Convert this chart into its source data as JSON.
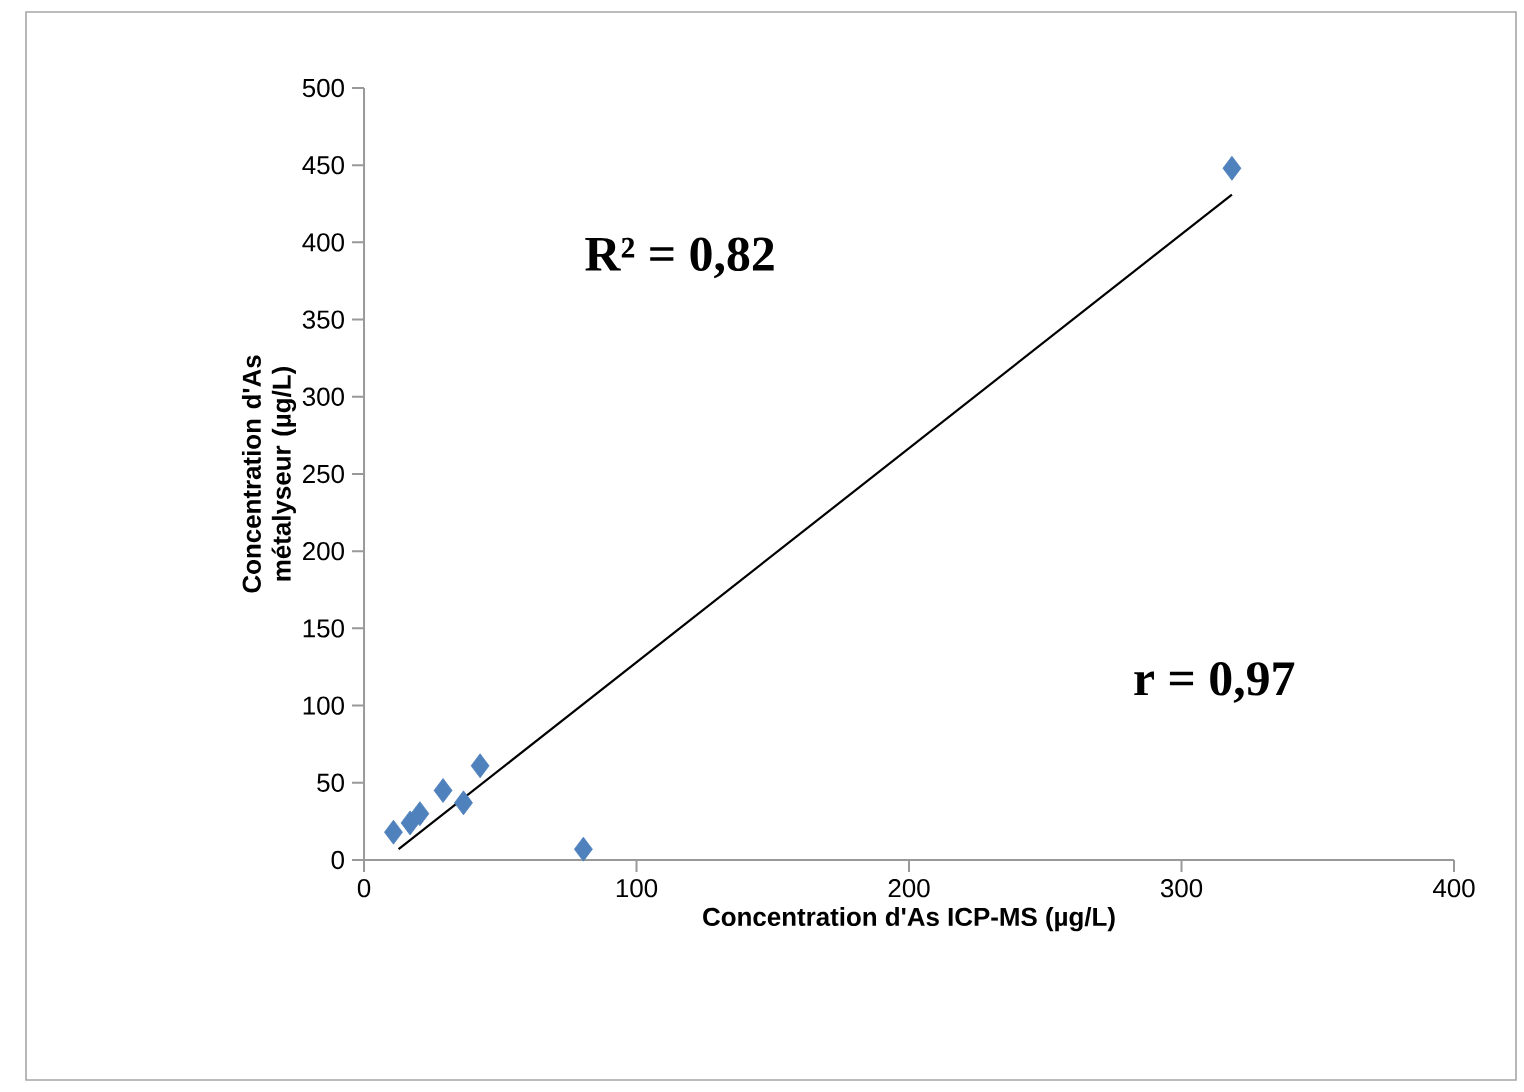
{
  "chart_data": {
    "type": "scatter",
    "xlabel": "Concentration d'As ICP-MS (µg/L)",
    "ylabel": "Concentration d'As métalyseur (µg/L)",
    "annotations": [
      "R² = 0,82",
      "r = 0,97"
    ],
    "series": [
      {
        "color": "#4f81bd",
        "marker": "diamond",
        "x": [
          10.8,
          16.9,
          20.5,
          29,
          36.5,
          42.6,
          80.5,
          318.5
        ],
        "values": [
          18,
          24,
          30,
          45,
          37,
          61,
          7,
          448
        ]
      },
      {
        "type": "line",
        "color": "#000000",
        "x": [
          12.7,
          318.5
        ],
        "values": [
          7,
          431
        ]
      }
    ],
    "xlim": [
      0,
      400
    ],
    "xticks": [
      0,
      100,
      200,
      300,
      400
    ],
    "ylim": [
      0,
      500
    ],
    "yticks": [
      0,
      50,
      100,
      150,
      200,
      250,
      300,
      350,
      400,
      450,
      500
    ],
    "grid": false
  }
}
